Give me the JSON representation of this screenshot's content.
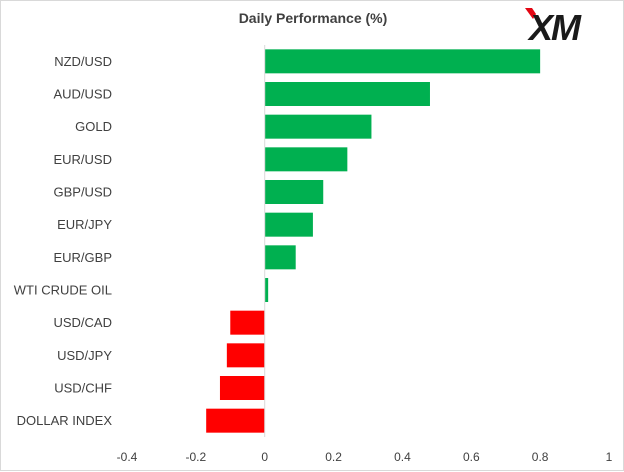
{
  "title": "Daily Performance (%)",
  "logo_text": "XM",
  "chart_data": {
    "type": "bar",
    "orientation": "horizontal",
    "title": "Daily Performance (%)",
    "xlabel": "",
    "ylabel": "",
    "xlim": [
      -0.4,
      1
    ],
    "xticks": [
      -0.4,
      -0.2,
      0,
      0.2,
      0.4,
      0.6,
      0.8,
      1
    ],
    "xtick_labels": [
      "-0.4",
      "-0.2",
      "0",
      "0.2",
      "0.4",
      "0.6",
      "0.8",
      "1"
    ],
    "grid": false,
    "legend": "none",
    "categories": [
      "NZD/USD",
      "AUD/USD",
      "GOLD",
      "EUR/USD",
      "GBP/USD",
      "EUR/JPY",
      "EUR/GBP",
      "WTI CRUDE OIL",
      "USD/CAD",
      "USD/JPY",
      "USD/CHF",
      "DOLLAR INDEX"
    ],
    "values": [
      0.8,
      0.48,
      0.31,
      0.24,
      0.17,
      0.14,
      0.09,
      0.01,
      -0.1,
      -0.11,
      -0.13,
      -0.17
    ],
    "colors": {
      "positive": "#00b050",
      "negative": "#ff0000",
      "axis": "#d9d9d9",
      "text": "#404040"
    }
  }
}
